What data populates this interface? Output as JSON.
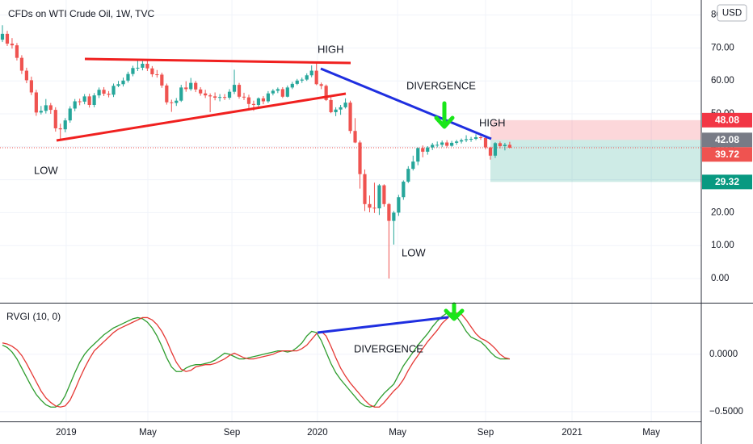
{
  "chart_data": [
    {
      "type": "candlestick",
      "title": "CFDs on WTI Crude Oil, 1W, TVC",
      "currency": "USD",
      "up_color": "#26a69a",
      "down_color": "#ef5350",
      "grid": true,
      "xlim": [
        -0.5,
        144.65
      ],
      "xticks": [
        {
          "value": 13.2,
          "label": "2019"
        },
        {
          "value": 30.1,
          "label": "May"
        },
        {
          "value": 47.5,
          "label": "Sep"
        },
        {
          "value": 65.2,
          "label": "2020"
        },
        {
          "value": 81.8,
          "label": "May"
        },
        {
          "value": 100,
          "label": "Sep"
        },
        {
          "value": 117.9,
          "label": "2021"
        },
        {
          "value": 134.3,
          "label": "May"
        }
      ],
      "ylim": [
        -7.35,
        84.56
      ],
      "yticks": [
        {
          "value": 0,
          "label": "0.00"
        },
        {
          "value": 10,
          "label": "10.00"
        },
        {
          "value": 20,
          "label": "20.00"
        },
        {
          "value": 30,
          "label": "30.00"
        },
        {
          "value": 40,
          "label": "40.00"
        },
        {
          "value": 50,
          "label": "50.00"
        },
        {
          "value": 60,
          "label": "60.00"
        },
        {
          "value": 70,
          "label": "70.00"
        },
        {
          "value": 80,
          "label": "80.00"
        }
      ],
      "open": [
        72.5,
        74.3,
        71.3,
        70.8,
        67.0,
        63.1,
        60.2,
        56.5,
        50.4,
        50.9,
        52.6,
        51.2,
        45.6,
        45.3,
        48.0,
        51.6,
        53.8,
        53.7,
        55.3,
        52.7,
        55.6,
        57.3,
        56.1,
        55.8,
        58.5,
        59.0,
        60.1,
        62.1,
        63.9,
        64.0,
        65.2,
        63.8,
        62.0,
        61.9,
        58.6,
        53.5,
        53.3,
        54.0,
        58.0,
        57.5,
        59.4,
        57.4,
        56.2,
        55.6,
        55.3,
        54.9,
        55.1,
        54.9,
        56.7,
        58.8,
        55.2,
        55.0,
        53.0,
        52.7,
        54.7,
        53.8,
        56.2,
        57.0,
        57.5,
        55.2,
        58.0,
        59.1,
        60.1,
        60.4,
        61.7,
        63.1,
        59.0,
        58.5,
        54.2,
        50.5,
        51.3,
        52.0,
        53.4,
        44.8,
        41.3,
        31.7,
        22.6,
        21.5,
        21.3,
        28.3,
        22.6,
        17.5,
        20.0,
        24.7,
        29.4,
        33.3,
        35.5,
        39.6,
        38.5,
        39.8,
        40.6,
        40.6,
        41.3,
        40.3,
        41.2,
        41.6,
        42.0,
        42.3,
        42.4,
        42.9,
        42.7,
        39.8,
        37.3,
        41.1,
        40.2,
        40.6
      ],
      "high": [
        76.9,
        75.2,
        73.0,
        71.5,
        67.8,
        64.0,
        61.3,
        57.3,
        52.4,
        54.5,
        53.3,
        52.0,
        47.0,
        48.7,
        52.3,
        54.5,
        54.6,
        56.0,
        56.1,
        56.3,
        58.0,
        58.1,
        56.9,
        59.2,
        60.0,
        61.0,
        62.8,
        64.6,
        66.6,
        66.0,
        66.1,
        64.5,
        63.3,
        62.5,
        59.2,
        54.3,
        54.8,
        58.8,
        59.9,
        60.9,
        60.0,
        58.1,
        57.3,
        56.2,
        56.5,
        56.0,
        56.0,
        57.5,
        63.4,
        59.4,
        56.4,
        55.8,
        54.0,
        55.0,
        55.4,
        56.9,
        57.5,
        58.0,
        58.1,
        58.6,
        59.7,
        60.6,
        61.0,
        62.3,
        64.7,
        65.6,
        59.5,
        58.9,
        55.0,
        52.0,
        52.7,
        54.7,
        54.0,
        48.7,
        41.9,
        33.1,
        25.2,
        29.1,
        28.7,
        28.6,
        22.9,
        20.5,
        25.4,
        29.8,
        34.1,
        37.3,
        39.8,
        40.4,
        40.2,
        41.2,
        41.6,
        41.9,
        42.0,
        41.8,
        42.1,
        42.5,
        43.5,
        43.0,
        43.8,
        43.4,
        43.0,
        40.0,
        41.4,
        41.6,
        41.2,
        41.5
      ],
      "low": [
        71.8,
        70.6,
        69.8,
        66.2,
        62.1,
        59.3,
        55.7,
        49.4,
        49.8,
        50.1,
        50.0,
        44.6,
        42.4,
        44.4,
        47.3,
        50.8,
        52.6,
        52.9,
        51.9,
        52.0,
        54.8,
        55.4,
        55.0,
        55.1,
        58.1,
        58.3,
        59.5,
        61.4,
        63.0,
        63.2,
        63.0,
        61.2,
        61.0,
        57.9,
        52.8,
        50.6,
        52.4,
        53.6,
        56.7,
        57.0,
        56.6,
        55.5,
        54.8,
        50.5,
        54.1,
        53.8,
        54.2,
        54.3,
        56.0,
        54.6,
        54.2,
        51.0,
        50.9,
        52.1,
        52.9,
        53.3,
        55.6,
        56.3,
        54.8,
        55.0,
        57.5,
        58.7,
        59.4,
        60.0,
        61.1,
        58.7,
        57.5,
        53.9,
        50.2,
        49.3,
        49.7,
        51.6,
        44.0,
        41.1,
        27.3,
        20.5,
        20.1,
        19.9,
        19.3,
        21.8,
        0.0,
        10.3,
        19.0,
        23.9,
        29.0,
        32.8,
        34.4,
        36.8,
        37.6,
        39.0,
        39.8,
        39.9,
        39.8,
        40.0,
        40.6,
        41.0,
        41.4,
        41.5,
        42.0,
        42.1,
        39.2,
        36.1,
        36.6,
        39.5,
        38.9,
        39.5
      ],
      "close": [
        74.3,
        71.3,
        70.8,
        67.0,
        63.1,
        60.2,
        56.5,
        50.4,
        50.9,
        52.6,
        51.2,
        45.6,
        45.3,
        48.0,
        51.6,
        53.8,
        53.7,
        55.3,
        52.7,
        55.6,
        57.3,
        56.1,
        55.8,
        58.5,
        59.0,
        60.1,
        62.1,
        63.9,
        64.0,
        65.2,
        63.8,
        62.0,
        61.9,
        58.6,
        53.5,
        53.3,
        54.0,
        58.0,
        57.5,
        59.4,
        57.4,
        56.2,
        55.6,
        55.3,
        54.9,
        55.1,
        54.9,
        56.7,
        58.8,
        55.2,
        55.0,
        53.0,
        52.7,
        54.7,
        53.8,
        56.2,
        57.0,
        57.5,
        55.2,
        58.0,
        59.1,
        60.1,
        60.4,
        61.7,
        63.1,
        59.0,
        58.5,
        54.2,
        50.5,
        51.3,
        52.0,
        53.4,
        44.8,
        41.3,
        31.7,
        22.6,
        21.5,
        21.3,
        28.3,
        22.6,
        17.5,
        20.0,
        24.7,
        29.4,
        33.3,
        35.5,
        39.6,
        38.5,
        39.8,
        40.6,
        40.6,
        41.3,
        40.3,
        41.2,
        41.6,
        42.0,
        42.3,
        42.4,
        42.9,
        42.7,
        39.8,
        37.3,
        41.1,
        40.2,
        40.6,
        39.72
      ],
      "position": {
        "stop": 48.08,
        "entry": 42.08,
        "target": 29.32,
        "stop_color": "#f23645",
        "entry_color": "#787b86",
        "target_color": "#089981"
      },
      "last_price": 39.72,
      "last_color": "#ef5350",
      "annotations": [
        "HIGH",
        "DIVERGENCE",
        "HIGH",
        "LOW",
        "LOW"
      ]
    },
    {
      "type": "line",
      "title": "RVGI (10, 0)",
      "grid": true,
      "xlim": [
        -0.5,
        144.65
      ],
      "ylim": [
        -0.585,
        0.45
      ],
      "yticks": [
        {
          "value": 0,
          "label": "0.0000"
        },
        {
          "value": -0.5,
          "label": "−0.5000"
        }
      ],
      "series": [
        {
          "color": "#2e9d2e",
          "values": [
            0.08,
            0.06,
            0.02,
            -0.04,
            -0.12,
            -0.2,
            -0.28,
            -0.35,
            -0.4,
            -0.44,
            -0.46,
            -0.46,
            -0.43,
            -0.36,
            -0.26,
            -0.16,
            -0.07,
            0.0,
            0.05,
            0.09,
            0.13,
            0.17,
            0.2,
            0.23,
            0.25,
            0.27,
            0.29,
            0.31,
            0.32,
            0.31,
            0.28,
            0.23,
            0.16,
            0.07,
            -0.03,
            -0.11,
            -0.15,
            -0.15,
            -0.12,
            -0.1,
            -0.09,
            -0.09,
            -0.08,
            -0.07,
            -0.05,
            -0.02,
            0.01,
            0.0,
            -0.02,
            -0.04,
            -0.04,
            -0.03,
            -0.02,
            -0.01,
            0.0,
            0.01,
            0.02,
            0.03,
            0.03,
            0.02,
            0.03,
            0.06,
            0.1,
            0.16,
            0.2,
            0.19,
            0.12,
            0.02,
            -0.08,
            -0.16,
            -0.22,
            -0.27,
            -0.32,
            -0.37,
            -0.42,
            -0.45,
            -0.46,
            -0.45,
            -0.39,
            -0.34,
            -0.3,
            -0.26,
            -0.18,
            -0.1,
            -0.04,
            0.02,
            0.08,
            0.13,
            0.18,
            0.24,
            0.29,
            0.33,
            0.36,
            0.36,
            0.33,
            0.27,
            0.2,
            0.15,
            0.13,
            0.11,
            0.07,
            0.02,
            -0.02,
            -0.04,
            -0.04,
            -0.04
          ]
        },
        {
          "color": "#e53935",
          "values": [
            0.1,
            0.09,
            0.07,
            0.04,
            -0.01,
            -0.08,
            -0.16,
            -0.24,
            -0.32,
            -0.38,
            -0.42,
            -0.45,
            -0.46,
            -0.45,
            -0.4,
            -0.31,
            -0.21,
            -0.12,
            -0.04,
            0.03,
            0.07,
            0.11,
            0.15,
            0.19,
            0.22,
            0.24,
            0.26,
            0.28,
            0.3,
            0.32,
            0.32,
            0.3,
            0.26,
            0.2,
            0.12,
            0.02,
            -0.07,
            -0.13,
            -0.15,
            -0.14,
            -0.11,
            -0.1,
            -0.09,
            -0.09,
            -0.08,
            -0.06,
            -0.04,
            -0.01,
            0.01,
            -0.01,
            -0.03,
            -0.04,
            -0.04,
            -0.03,
            -0.02,
            -0.01,
            0.0,
            0.02,
            0.03,
            0.03,
            0.03,
            0.03,
            0.05,
            0.08,
            0.13,
            0.18,
            0.2,
            0.16,
            0.07,
            -0.03,
            -0.12,
            -0.19,
            -0.25,
            -0.3,
            -0.35,
            -0.4,
            -0.44,
            -0.46,
            -0.46,
            -0.42,
            -0.37,
            -0.32,
            -0.28,
            -0.22,
            -0.14,
            -0.07,
            -0.01,
            0.05,
            0.11,
            0.16,
            0.21,
            0.27,
            0.31,
            0.35,
            0.36,
            0.35,
            0.3,
            0.24,
            0.18,
            0.14,
            0.12,
            0.09,
            0.05,
            0.0,
            -0.03,
            -0.04
          ]
        }
      ],
      "annotations": [
        "DIVERGENCE"
      ]
    }
  ]
}
